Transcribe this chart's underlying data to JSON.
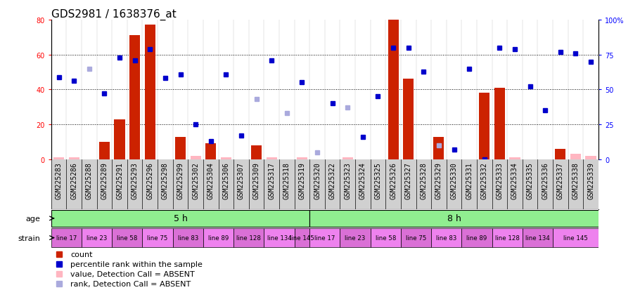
{
  "title": "GDS2981 / 1638376_at",
  "samples": [
    "GSM225283",
    "GSM225286",
    "GSM225288",
    "GSM225289",
    "GSM225291",
    "GSM225293",
    "GSM225296",
    "GSM225298",
    "GSM225299",
    "GSM225302",
    "GSM225304",
    "GSM225306",
    "GSM225307",
    "GSM225309",
    "GSM225317",
    "GSM225318",
    "GSM225319",
    "GSM225320",
    "GSM225322",
    "GSM225323",
    "GSM225324",
    "GSM225325",
    "GSM225326",
    "GSM225327",
    "GSM225328",
    "GSM225329",
    "GSM225330",
    "GSM225331",
    "GSM225332",
    "GSM225333",
    "GSM225334",
    "GSM225335",
    "GSM225336",
    "GSM225337",
    "GSM225338",
    "GSM225339"
  ],
  "count_values": [
    1,
    1,
    0,
    10,
    23,
    71,
    77,
    0,
    13,
    2,
    9,
    1,
    0,
    8,
    1,
    0,
    1,
    0,
    0,
    1,
    0,
    0,
    80,
    46,
    0,
    13,
    0,
    0,
    38,
    41,
    1,
    0,
    0,
    6,
    3,
    2
  ],
  "percentile_values": [
    59,
    56,
    65,
    47,
    73,
    71,
    79,
    58,
    61,
    25,
    13,
    61,
    17,
    43,
    71,
    33,
    55,
    5,
    40,
    37,
    16,
    45,
    80,
    80,
    63,
    10,
    7,
    65,
    0,
    80,
    79,
    52,
    35,
    77,
    76,
    70
  ],
  "count_absent": [
    true,
    true,
    false,
    false,
    false,
    false,
    false,
    false,
    false,
    true,
    false,
    true,
    false,
    false,
    true,
    false,
    true,
    false,
    false,
    true,
    false,
    false,
    false,
    false,
    false,
    false,
    false,
    false,
    false,
    false,
    true,
    false,
    false,
    false,
    true,
    true
  ],
  "rank_absent": [
    false,
    false,
    true,
    false,
    false,
    false,
    false,
    false,
    false,
    false,
    false,
    false,
    false,
    true,
    false,
    true,
    false,
    true,
    false,
    true,
    false,
    false,
    false,
    false,
    false,
    true,
    false,
    false,
    false,
    false,
    false,
    false,
    false,
    false,
    false,
    false
  ],
  "left_ylim": [
    0,
    80
  ],
  "right_ylim": [
    0,
    100
  ],
  "left_yticks": [
    0,
    20,
    40,
    60,
    80
  ],
  "right_yticks": [
    0,
    25,
    50,
    75,
    100
  ],
  "right_yticklabels": [
    "0",
    "25",
    "50",
    "75",
    "100%"
  ],
  "bar_color": "#CC2200",
  "blue_dot_color": "#0000CC",
  "light_pink_color": "#FFB6C1",
  "light_blue_color": "#AAAADD",
  "title_fontsize": 11,
  "tick_fontsize": 7,
  "legend_fontsize": 8,
  "strain_groups": [
    {
      "label": "line 17",
      "start": 0,
      "end": 2
    },
    {
      "label": "line 23",
      "start": 2,
      "end": 4
    },
    {
      "label": "line 58",
      "start": 4,
      "end": 6
    },
    {
      "label": "line 75",
      "start": 6,
      "end": 8
    },
    {
      "label": "line 83",
      "start": 8,
      "end": 10
    },
    {
      "label": "line 89",
      "start": 10,
      "end": 12
    },
    {
      "label": "line 128",
      "start": 12,
      "end": 14
    },
    {
      "label": "line 134",
      "start": 14,
      "end": 16
    },
    {
      "label": "line 145",
      "start": 16,
      "end": 17
    },
    {
      "label": "line 17",
      "start": 17,
      "end": 19
    },
    {
      "label": "line 23",
      "start": 19,
      "end": 21
    },
    {
      "label": "line 58",
      "start": 21,
      "end": 23
    },
    {
      "label": "line 75",
      "start": 23,
      "end": 25
    },
    {
      "label": "line 83",
      "start": 25,
      "end": 27
    },
    {
      "label": "line 89",
      "start": 27,
      "end": 29
    },
    {
      "label": "line 128",
      "start": 29,
      "end": 31
    },
    {
      "label": "line 134",
      "start": 31,
      "end": 33
    },
    {
      "label": "line 145",
      "start": 33,
      "end": 36
    }
  ]
}
